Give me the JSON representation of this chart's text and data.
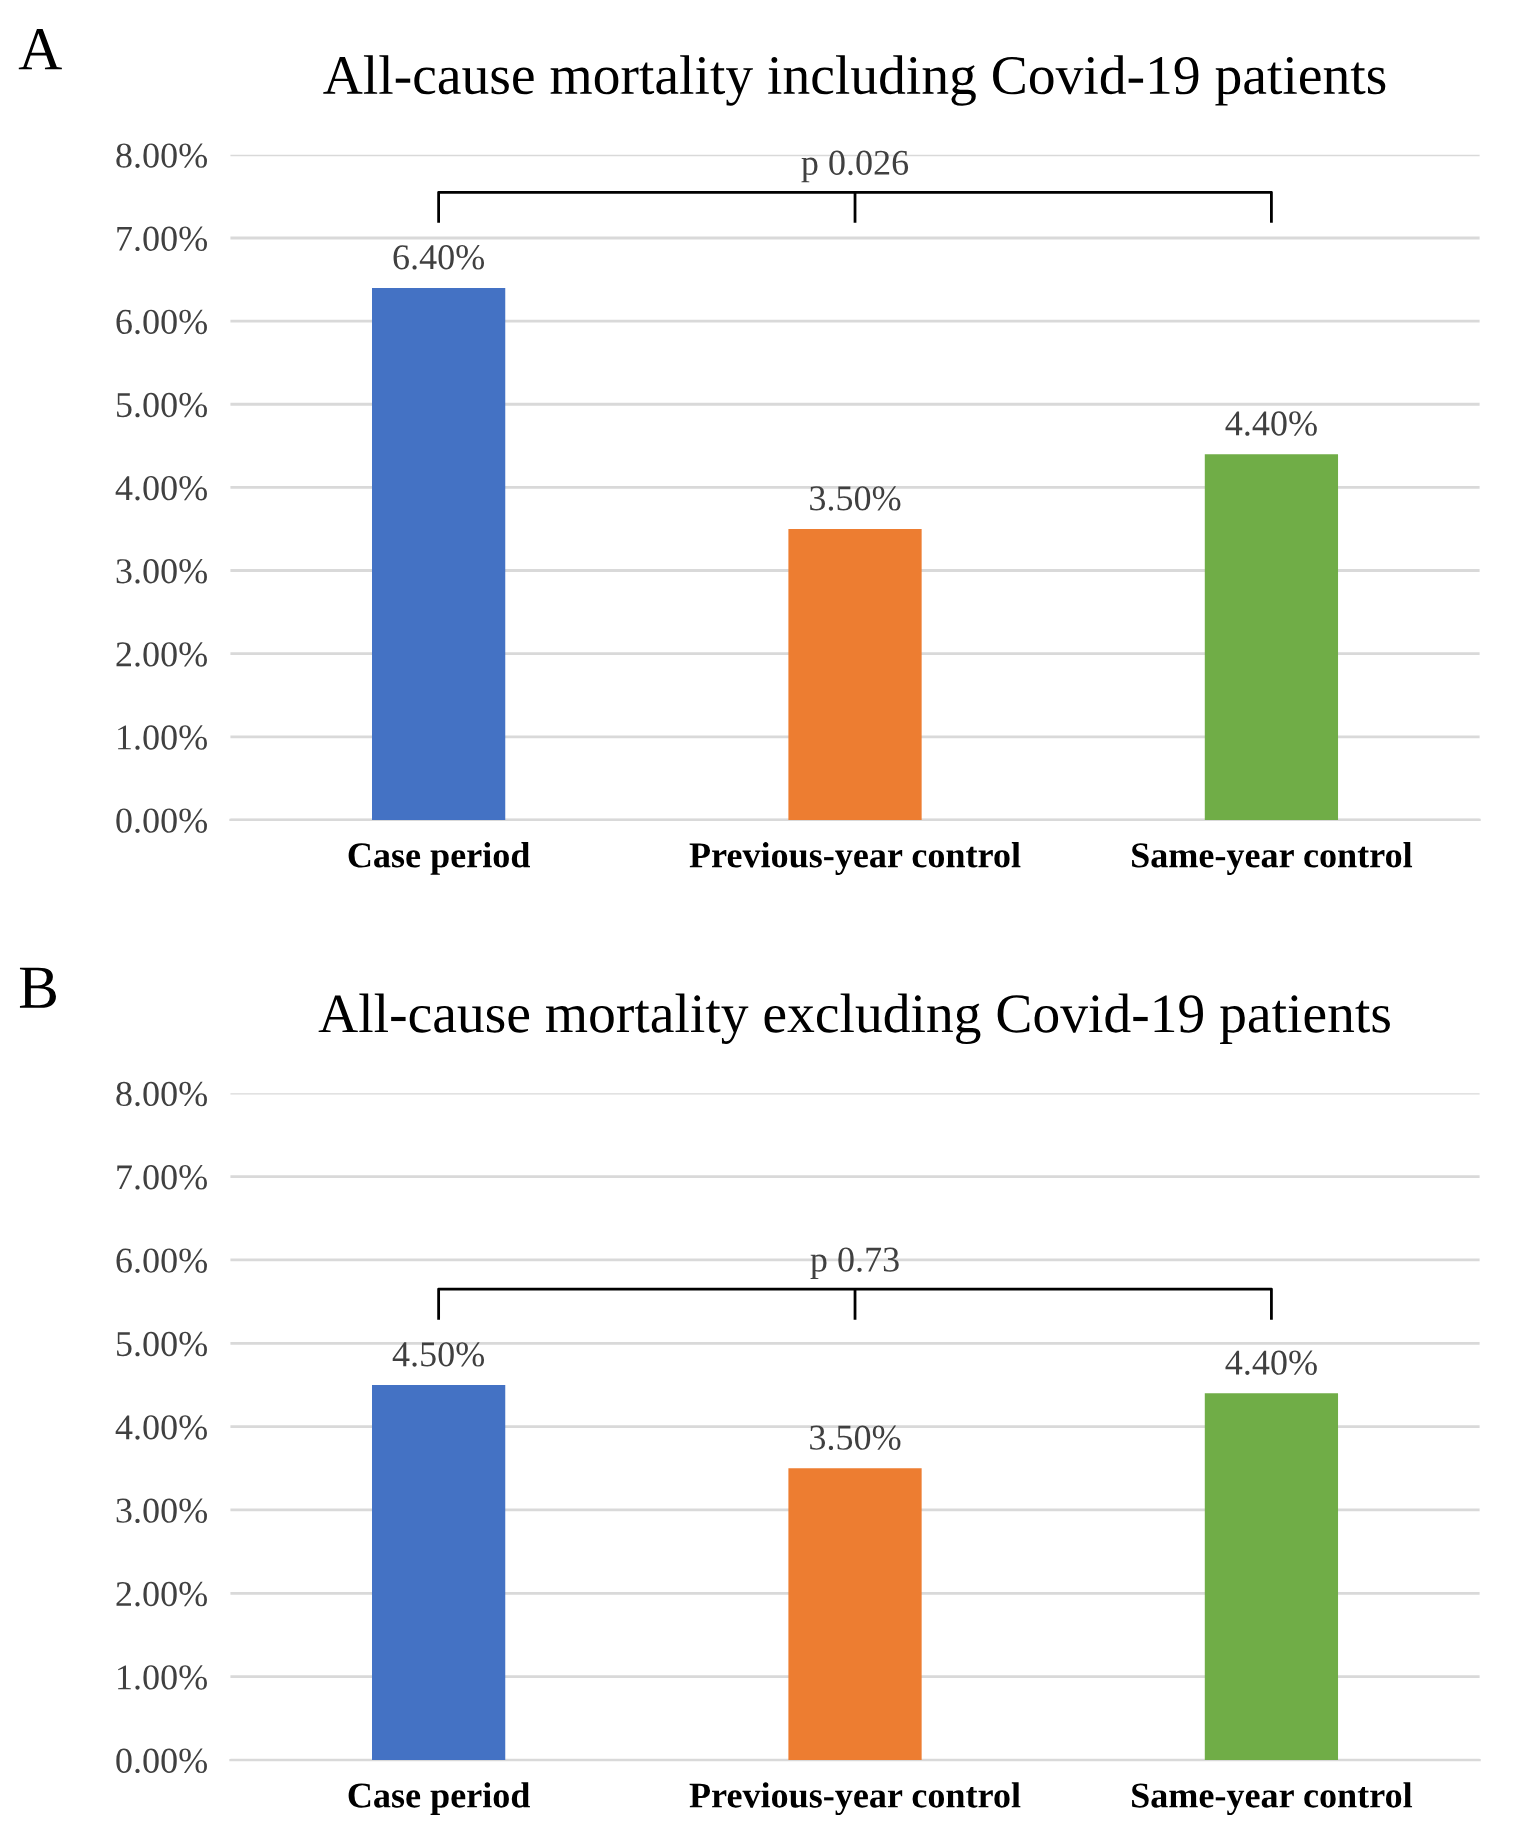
{
  "chart_data": [
    {
      "type": "bar",
      "title": "All-cause mortality including Covid-19 patients",
      "categories": [
        "Case period",
        "Previous-year control",
        "Same-year control"
      ],
      "values": [
        6.4,
        3.5,
        4.4
      ],
      "colors": [
        "#4472c4",
        "#ed7d31",
        "#70ad47"
      ],
      "value_labels": [
        "6.40%",
        "3.50%",
        "4.40%"
      ],
      "ylim": [
        0,
        8
      ],
      "yticks": [
        {
          "value": 0,
          "label": "0.00%"
        },
        {
          "value": 1,
          "label": "1.00%"
        },
        {
          "value": 2,
          "label": "2.00%"
        },
        {
          "value": 3,
          "label": "3.00%"
        },
        {
          "value": 4,
          "label": "4.00%"
        },
        {
          "value": 5,
          "label": "5.00%"
        },
        {
          "value": 6,
          "label": "6.00%"
        },
        {
          "value": 7,
          "label": "7.00%"
        },
        {
          "value": 8,
          "label": "8.00%"
        }
      ],
      "grid": "y",
      "annotations": [
        "A",
        "p 0.026"
      ]
    },
    {
      "type": "bar",
      "title": "All-cause mortality excluding Covid-19 patients",
      "categories": [
        "Case period",
        "Previous-year control",
        "Same-year control"
      ],
      "values": [
        4.5,
        3.5,
        4.4
      ],
      "colors": [
        "#4472c4",
        "#ed7d31",
        "#70ad47"
      ],
      "value_labels": [
        "4.50%",
        "3.50%",
        "4.40%"
      ],
      "ylim": [
        0,
        8
      ],
      "yticks": [
        {
          "value": 0,
          "label": "0.00%"
        },
        {
          "value": 1,
          "label": "1.00%"
        },
        {
          "value": 2,
          "label": "2.00%"
        },
        {
          "value": 3,
          "label": "3.00%"
        },
        {
          "value": 4,
          "label": "4.00%"
        },
        {
          "value": 5,
          "label": "5.00%"
        },
        {
          "value": 6,
          "label": "6.00%"
        },
        {
          "value": 7,
          "label": "7.00%"
        },
        {
          "value": 8,
          "label": "8.00%"
        }
      ],
      "grid": "y",
      "annotations": [
        "B",
        "p 0.73"
      ]
    }
  ]
}
